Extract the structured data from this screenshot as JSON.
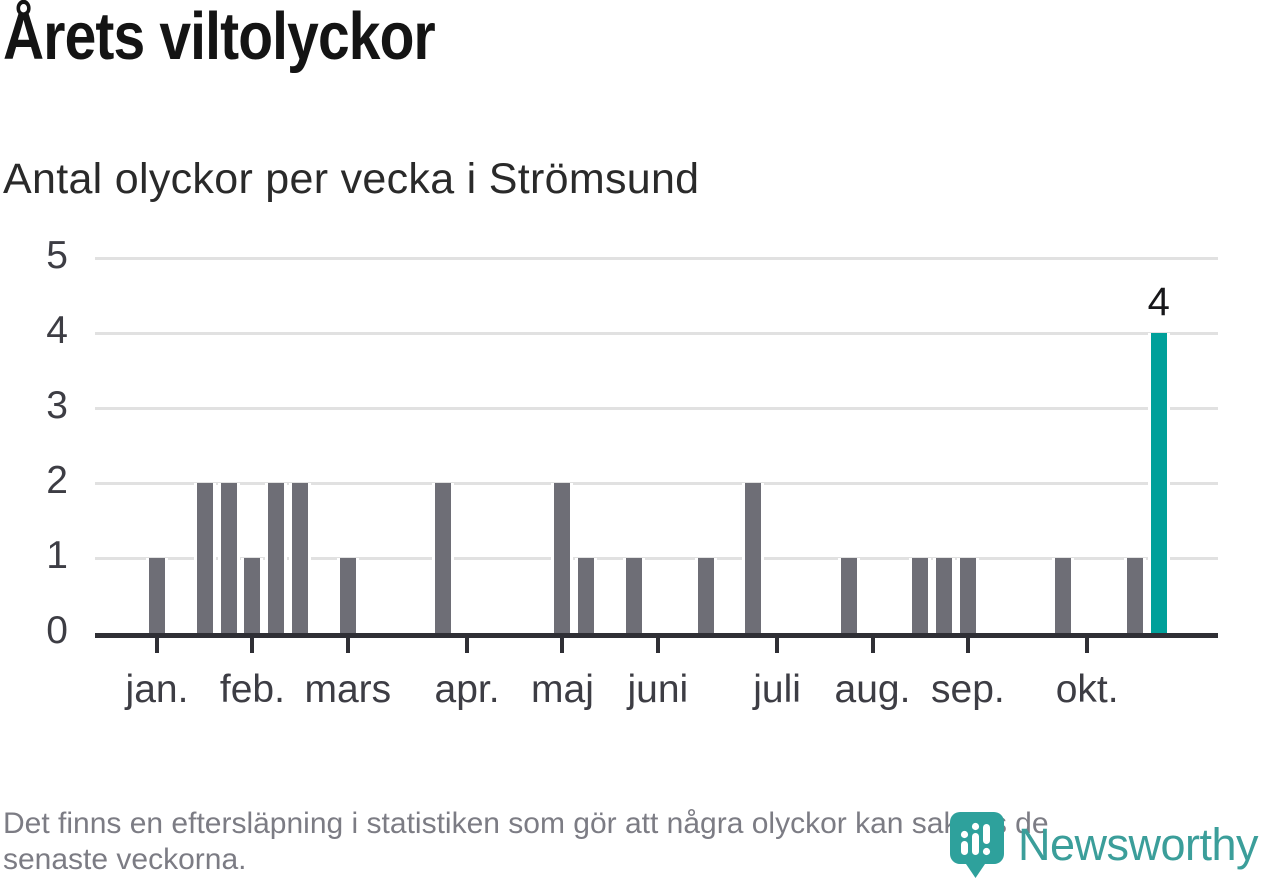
{
  "title": "Årets viltolyckor",
  "subtitle": "Antal olyckor per vecka i Strömsund",
  "footer": {
    "line1": "Det finns en eftersläpning i statistiken som gör att några olyckor kan saknas de",
    "line2": "senaste veckorna."
  },
  "branding": {
    "name": "Newsworthy",
    "icon": "newsworthy-pin-barchart-icon"
  },
  "colors": {
    "title": "#141414",
    "subtitle": "#2a2a2a",
    "bar": "#6e6e76",
    "highlight": "#00a09a",
    "grid": "#e1e1e1",
    "axis": "#2f2f35",
    "tick_label": "#3d3d44",
    "footnote": "#7c7c84",
    "brand": "#3b9e9a",
    "brand_icon": "#2ea19c"
  },
  "chart_data": {
    "type": "bar",
    "title": "Årets viltolyckor",
    "subtitle": "Antal olyckor per vecka i Strömsund",
    "xlabel": "",
    "ylabel": "Antal olyckor per vecka",
    "x_unit": "vecka",
    "weeks": [
      1,
      2,
      3,
      4,
      5,
      6,
      7,
      8,
      9,
      10,
      11,
      12,
      13,
      14,
      15,
      16,
      17,
      18,
      19,
      20,
      21,
      22,
      23,
      24,
      25,
      26,
      27,
      28,
      29,
      30,
      31,
      32,
      33,
      34,
      35,
      36,
      37,
      38,
      39,
      40,
      41,
      42,
      43,
      44,
      45
    ],
    "values": [
      1,
      0,
      2,
      2,
      1,
      2,
      2,
      0,
      1,
      0,
      0,
      0,
      2,
      0,
      0,
      0,
      0,
      2,
      1,
      0,
      1,
      0,
      0,
      1,
      0,
      2,
      0,
      0,
      0,
      1,
      0,
      0,
      1,
      1,
      1,
      0,
      0,
      0,
      1,
      0,
      0,
      1,
      4,
      0,
      0
    ],
    "month_ticks": [
      {
        "label": "jan.",
        "week": 1
      },
      {
        "label": "feb.",
        "week": 5
      },
      {
        "label": "mars",
        "week": 9
      },
      {
        "label": "apr.",
        "week": 14
      },
      {
        "label": "maj",
        "week": 18
      },
      {
        "label": "juni",
        "week": 22
      },
      {
        "label": "juli",
        "week": 27
      },
      {
        "label": "aug.",
        "week": 31
      },
      {
        "label": "sep.",
        "week": 35
      },
      {
        "label": "okt.",
        "week": 40
      }
    ],
    "y_ticks": [
      0,
      1,
      2,
      3,
      4,
      5
    ],
    "ylim": [
      0,
      5
    ],
    "grid": true,
    "legend": false,
    "highlight": {
      "week": 43,
      "value": 4,
      "label": "4"
    }
  }
}
